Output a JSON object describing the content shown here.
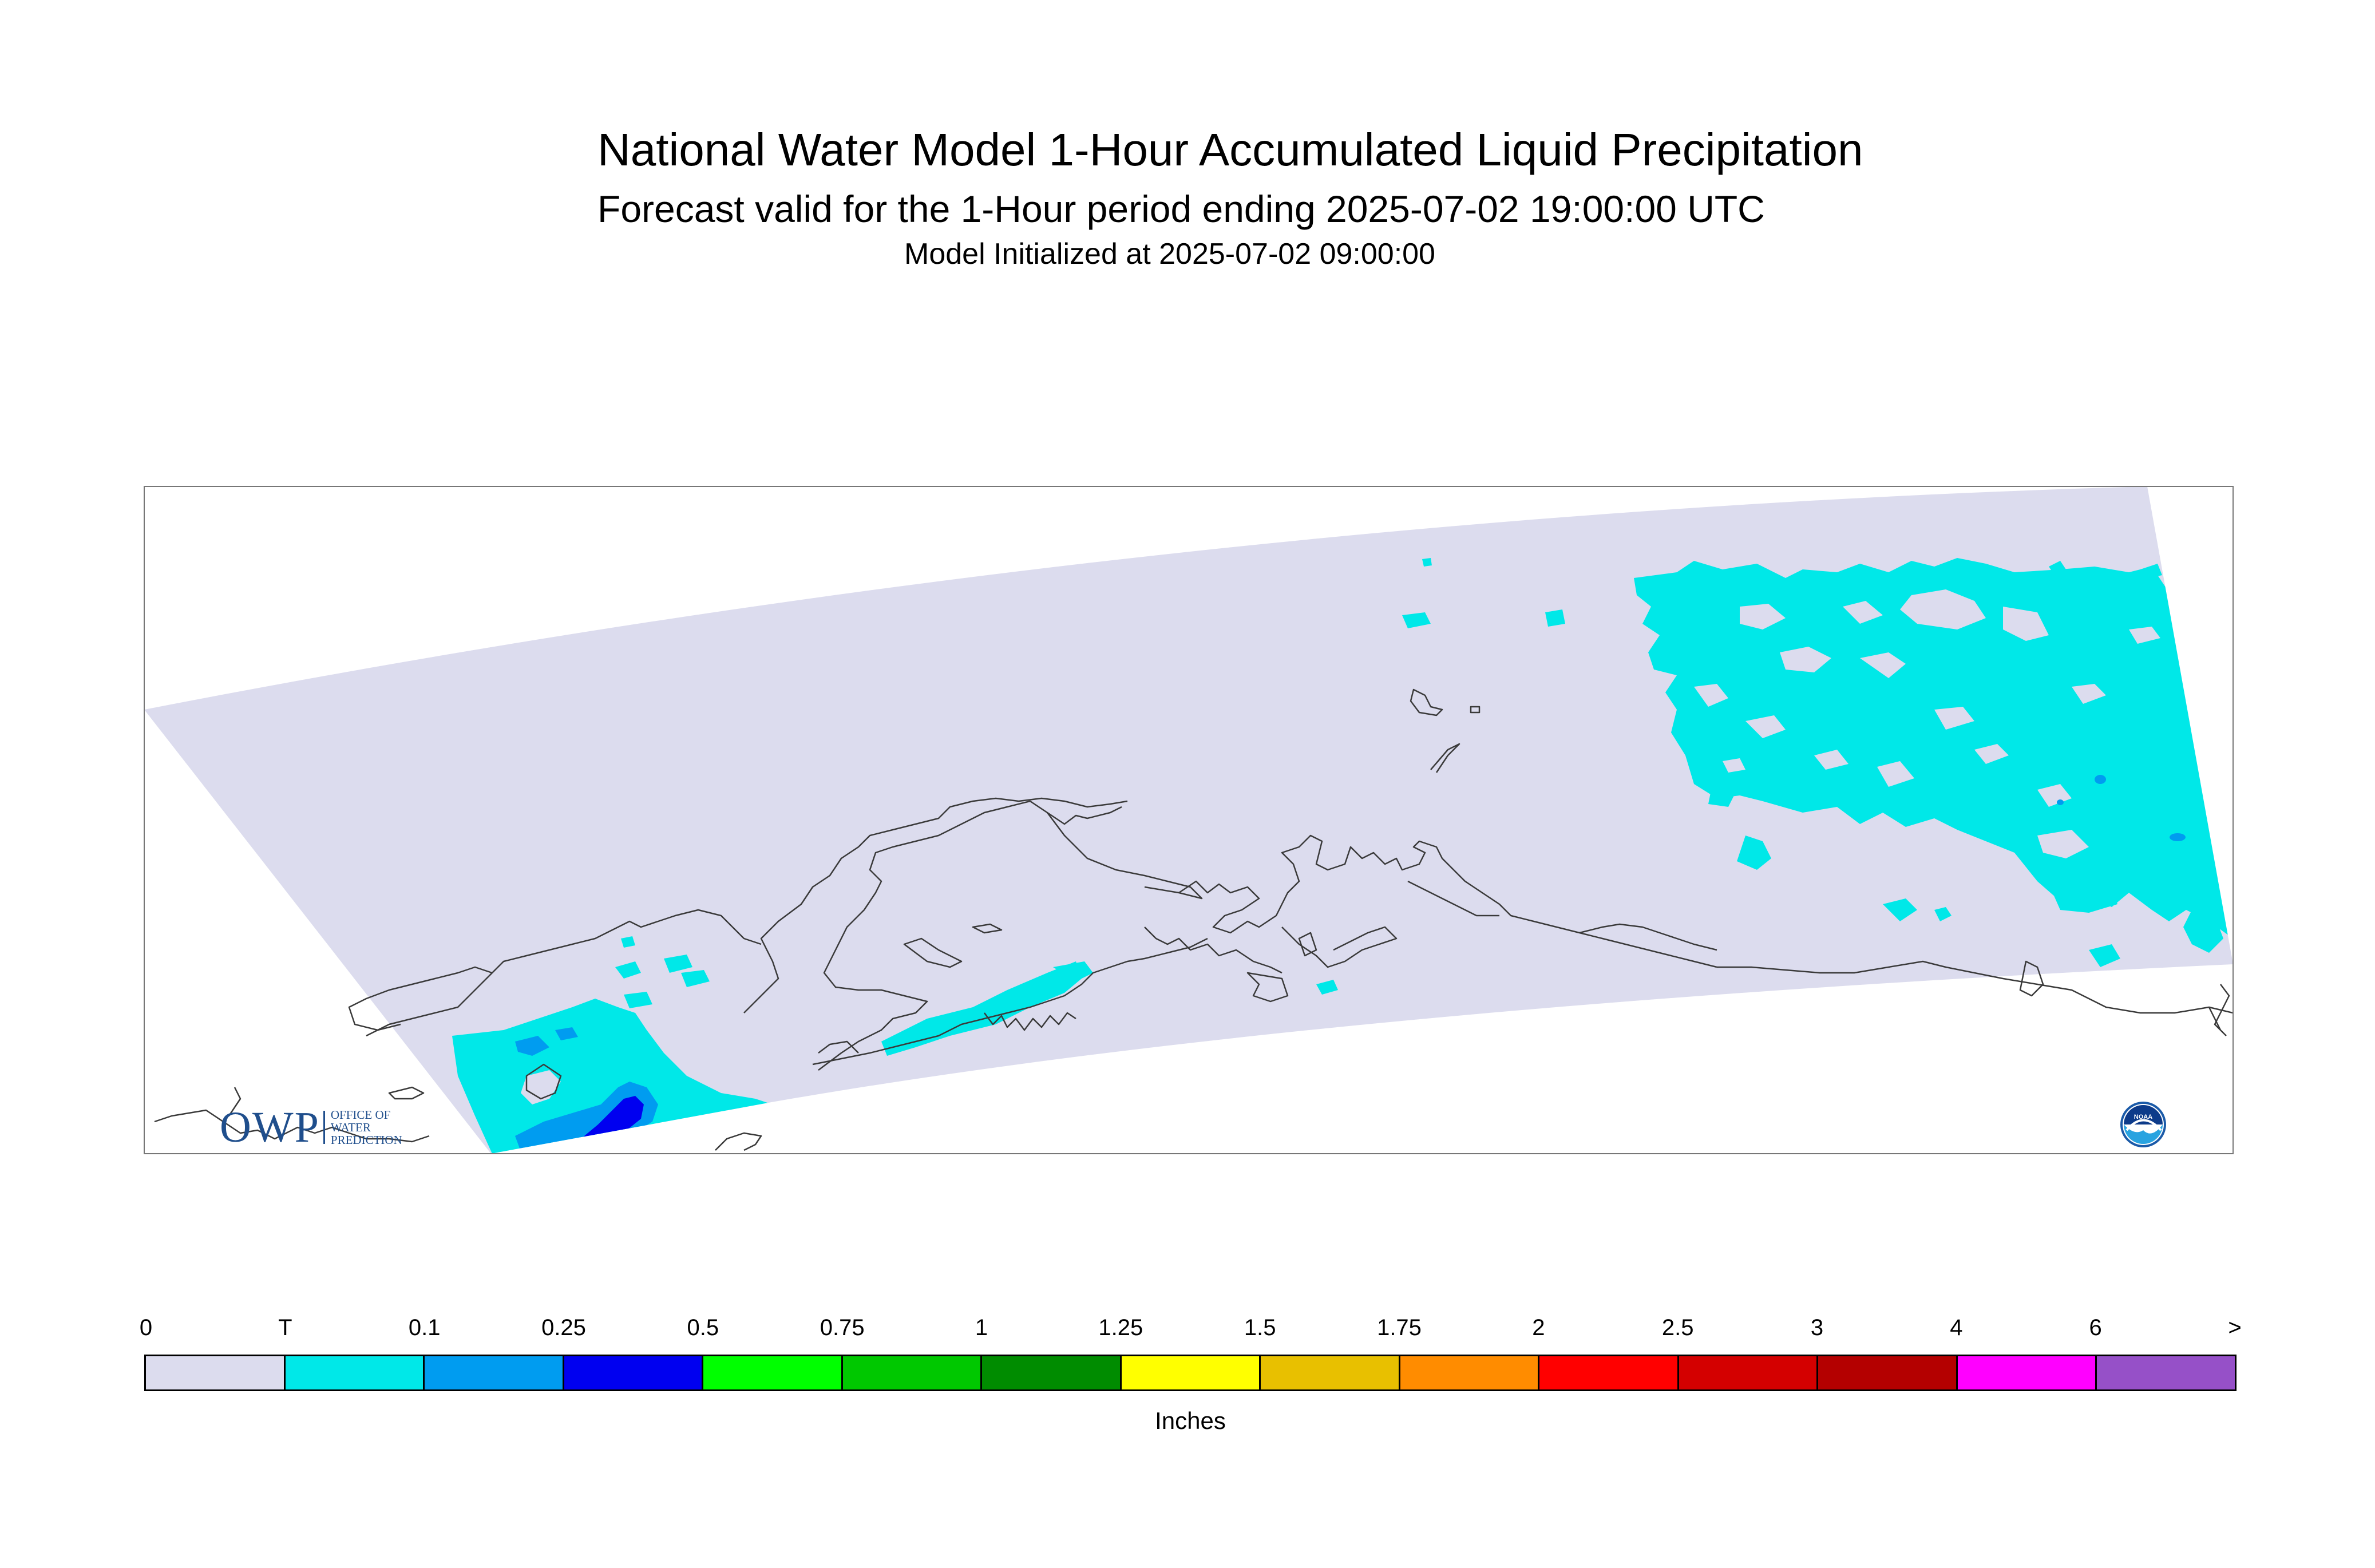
{
  "header": {
    "title": "National Water Model 1-Hour Accumulated Liquid Precipitation",
    "subtitle": "Forecast valid for the 1-Hour period ending 2025-07-02 19:00:00 UTC",
    "init": "Model Initialized at 2025-07-02 09:00:00"
  },
  "logos": {
    "owp_main": "OWP",
    "owp_line1": "OFFICE OF",
    "owp_line2": "WATER",
    "owp_line3": "PREDICTION",
    "noaa_text": "NOAA"
  },
  "legend": {
    "unit": "Inches",
    "ticks": [
      "0",
      "T",
      "0.1",
      "0.25",
      "0.5",
      "0.75",
      "1",
      "1.25",
      "1.5",
      "1.75",
      "2",
      "2.5",
      "3",
      "4",
      "6",
      ">"
    ],
    "colors": [
      "#dcdcee",
      "#00e8e8",
      "#009cf0",
      "#0000f0",
      "#00ff00",
      "#00c800",
      "#008c00",
      "#ffff00",
      "#e8c000",
      "#ff8c00",
      "#ff0000",
      "#d40000",
      "#b40000",
      "#ff00ff",
      "#9650c8"
    ]
  },
  "map_colors": {
    "domain": "#dcdcee",
    "trace": "#00e8e8",
    "light": "#009cf0",
    "heavy": "#0000f0",
    "coast": "#3a3a3a"
  }
}
